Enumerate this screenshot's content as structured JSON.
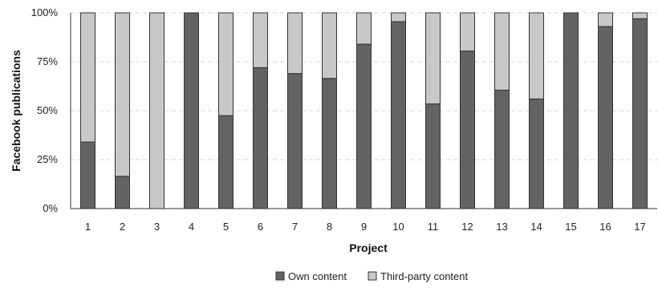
{
  "chart_data": {
    "type": "bar",
    "stacked": true,
    "normalized_percent": true,
    "categories": [
      "1",
      "2",
      "3",
      "4",
      "5",
      "6",
      "7",
      "8",
      "9",
      "10",
      "11",
      "12",
      "13",
      "14",
      "15",
      "16",
      "17"
    ],
    "series": [
      {
        "name": "Own content",
        "color": "#636363",
        "values": [
          34,
          16.5,
          0,
          100,
          47.5,
          72,
          69,
          66.5,
          84,
          95.5,
          53.5,
          80.5,
          60.5,
          56,
          100,
          93,
          97
        ]
      },
      {
        "name": "Third-party content",
        "color": "#c8c8c8",
        "values": [
          66,
          83.5,
          100,
          0,
          52.5,
          28,
          31,
          33.5,
          16,
          4.5,
          46.5,
          19.5,
          39.5,
          44,
          0,
          7,
          3
        ]
      }
    ],
    "title": "",
    "xlabel": "Project",
    "ylabel": "Facebook publications",
    "ylim": [
      0,
      100
    ],
    "yticks": [
      "0%",
      "25%",
      "50%",
      "75%",
      "100%"
    ],
    "grid": true,
    "legend": "bottom-center"
  }
}
